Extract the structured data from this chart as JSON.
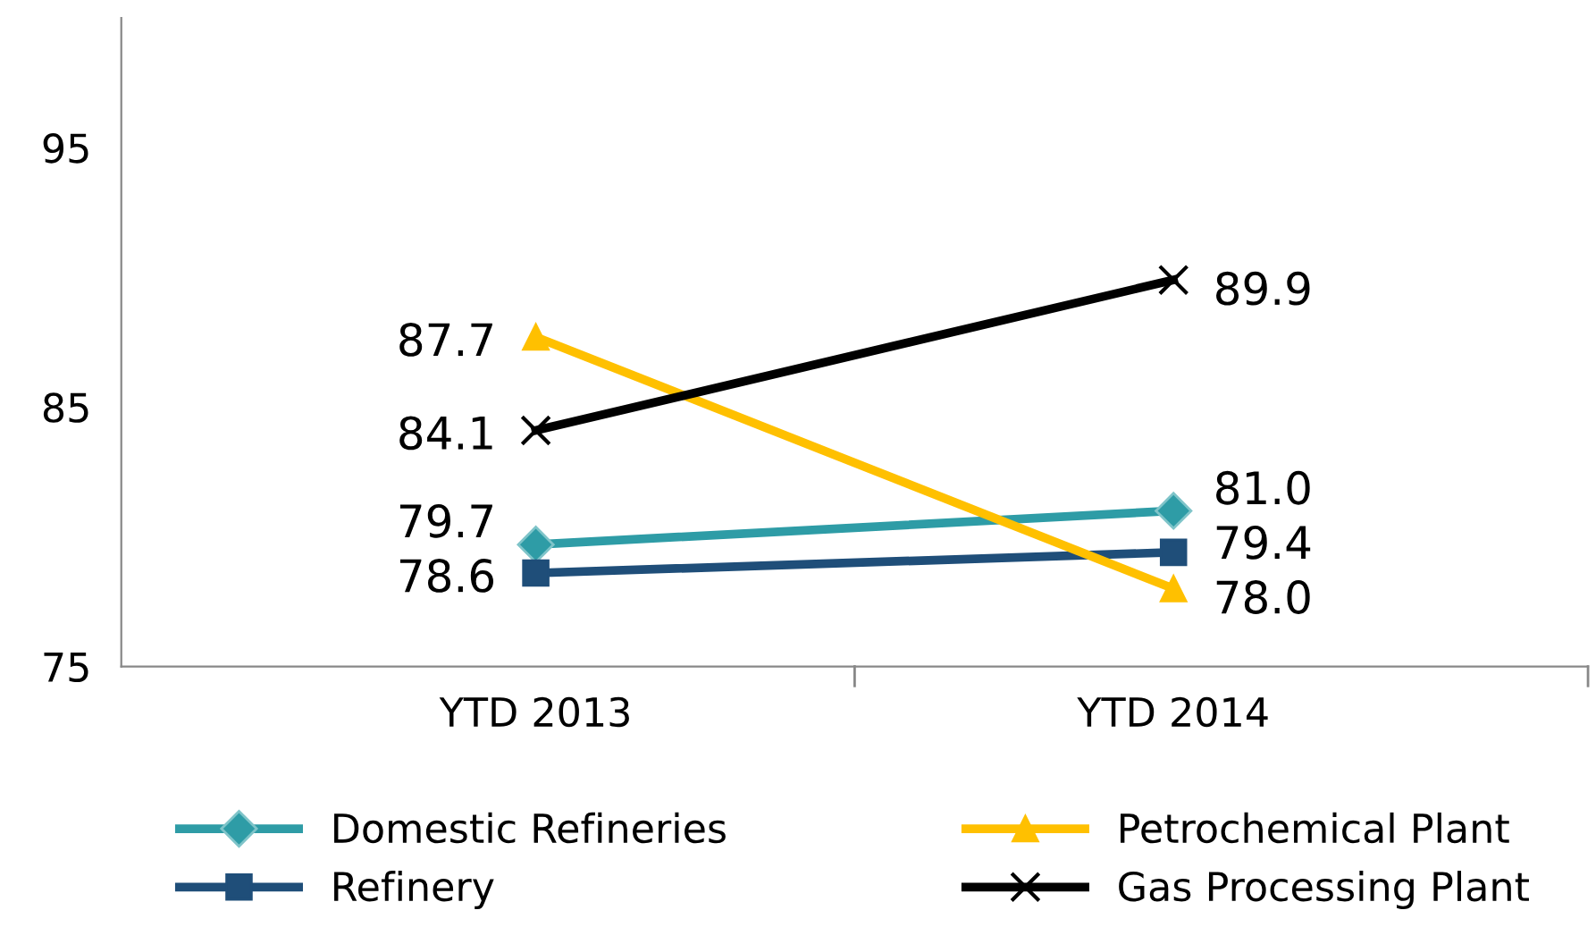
{
  "chart_data": {
    "type": "line",
    "categories": [
      "YTD 2013",
      "YTD 2014"
    ],
    "series": [
      {
        "name": "Domestic Refineries",
        "color": "#2e9ca6",
        "marker": "diamond",
        "values": [
          79.7,
          81.0
        ],
        "value_labels": [
          "79.7",
          "81.0"
        ]
      },
      {
        "name": "Refinery",
        "color": "#1f4e79",
        "marker": "square",
        "values": [
          78.6,
          79.4
        ],
        "value_labels": [
          "78.6",
          "79.4"
        ]
      },
      {
        "name": "Petrochemical Plant",
        "color": "#ffc000",
        "marker": "triangle",
        "values": [
          87.7,
          78.0
        ],
        "value_labels": [
          "87.7",
          "78.0"
        ]
      },
      {
        "name": "Gas Processing Plant",
        "color": "#000000",
        "marker": "cross",
        "values": [
          84.1,
          89.9
        ],
        "value_labels": [
          "84.1",
          "89.9"
        ]
      }
    ],
    "ylim": [
      75,
      100
    ],
    "yticks": [
      75,
      85,
      95
    ],
    "grid": false,
    "legend": "bottom",
    "line_style": "solid"
  }
}
